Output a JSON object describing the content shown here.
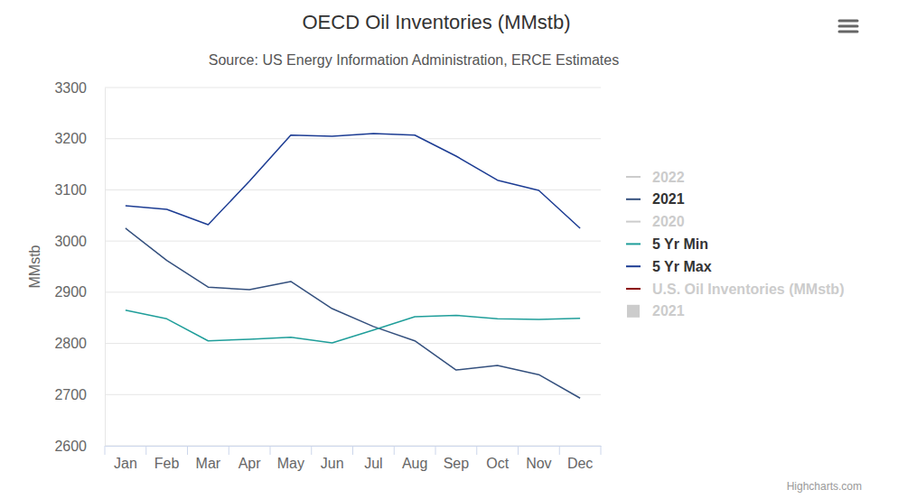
{
  "chart_data": {
    "type": "line",
    "title": "OECD Oil Inventories (MMstb)",
    "subtitle": "Source: US Energy Information Administration, ERCE Estimates",
    "y_label": "MMstb",
    "credits": "Highcharts.com",
    "categories": [
      "Jan",
      "Feb",
      "Mar",
      "Apr",
      "May",
      "Jun",
      "Jul",
      "Aug",
      "Sep",
      "Oct",
      "Nov",
      "Dec"
    ],
    "series": [
      {
        "name": "2022",
        "color": "#cccccc",
        "values": [
          null,
          null,
          null,
          null,
          null,
          null,
          null,
          null,
          null,
          null,
          null,
          null
        ]
      },
      {
        "name": "2021",
        "color": "#34507e",
        "values": [
          3025,
          2962,
          2910,
          2905,
          2921,
          2868,
          2833,
          2805,
          2748,
          2757,
          2739,
          2693
        ]
      },
      {
        "name": "2020",
        "color": "#cccccc",
        "values": [
          null,
          null,
          null,
          null,
          null,
          null,
          null,
          null,
          null,
          null,
          null,
          null
        ]
      },
      {
        "name": "5 Yr Min",
        "color": "#1f9e9a",
        "values": [
          2865,
          2848,
          2805,
          2808,
          2812,
          2801,
          2826,
          2852,
          2855,
          2848,
          2847,
          2849
        ]
      },
      {
        "name": "5 Yr Max",
        "color": "#1c3c93",
        "values": [
          3069,
          3062,
          3032,
          3117,
          3207,
          3205,
          3210,
          3207,
          3166,
          3119,
          3099,
          3025
        ]
      },
      {
        "name": "U.S. Oil Inventories (MMstb)",
        "color": "#8b0000",
        "values": [
          null,
          null,
          null,
          null,
          null,
          null,
          null,
          null,
          null,
          null,
          null,
          null
        ]
      },
      {
        "name": "2021",
        "type": "area",
        "color": "#cccccc",
        "values": [
          null,
          null,
          null,
          null,
          null,
          null,
          null,
          null,
          null,
          null,
          null,
          null
        ]
      }
    ],
    "ylim": [
      2600,
      3300
    ],
    "yticks": [
      2600,
      2700,
      2800,
      2900,
      3000,
      3100,
      3200,
      3300
    ],
    "grid": true,
    "legend": "right"
  }
}
